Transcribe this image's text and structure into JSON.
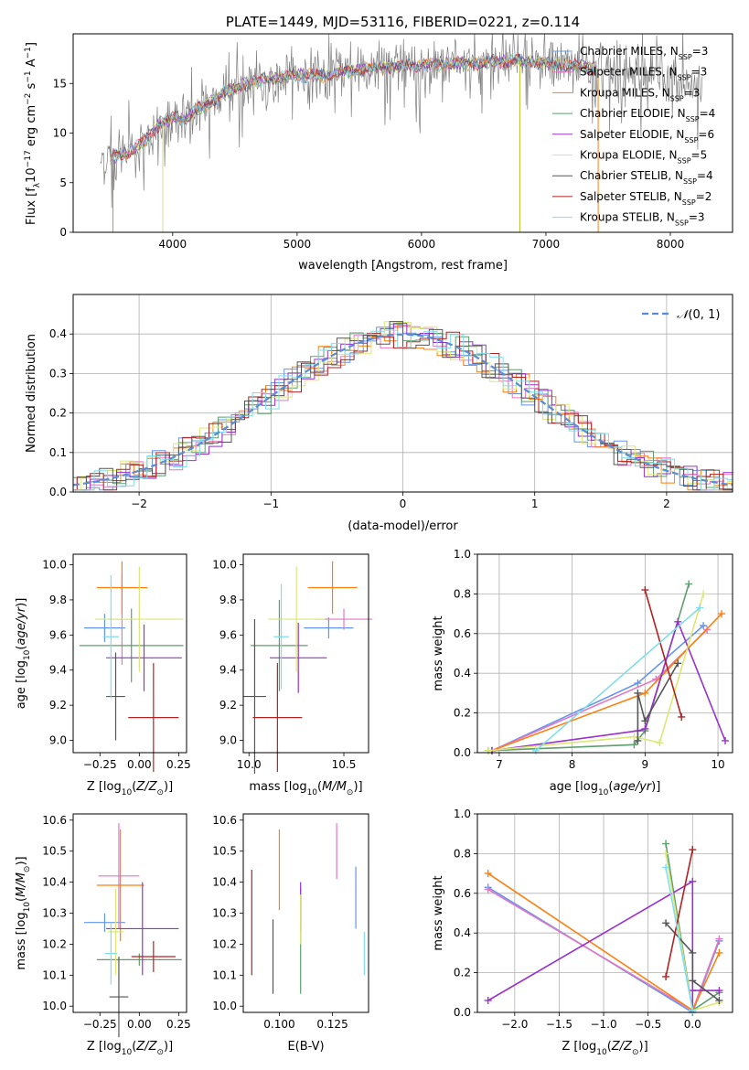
{
  "chart_data": [
    {
      "id": "spectrum",
      "type": "line",
      "title": "PLATE=1449, MJD=53116, FIBERID=0221, z=0.114",
      "xlabel": "wavelength [Angstrom, rest frame]",
      "ylabel": "Flux [f_λ 10^-17 erg cm^-2 s^-1 A^-1]",
      "xlim": [
        3200,
        8500
      ],
      "ylim": [
        0,
        20
      ],
      "xticks": [
        4000,
        5000,
        6000,
        7000,
        8000
      ],
      "yticks": [
        0,
        5,
        10,
        15
      ],
      "legend_position": "right",
      "continuum_points": [
        [
          3450,
          7.5
        ],
        [
          3600,
          7.8
        ],
        [
          3700,
          8.5
        ],
        [
          3800,
          9.5
        ],
        [
          3900,
          11.0
        ],
        [
          4000,
          11.5
        ],
        [
          4100,
          11.5
        ],
        [
          4200,
          12.5
        ],
        [
          4300,
          13.0
        ],
        [
          4400,
          14.0
        ],
        [
          4600,
          15.0
        ],
        [
          4800,
          15.5
        ],
        [
          5000,
          15.8
        ],
        [
          5200,
          15.8
        ],
        [
          5400,
          16.2
        ],
        [
          5600,
          16.5
        ],
        [
          5800,
          16.8
        ],
        [
          6000,
          16.8
        ],
        [
          6200,
          17.0
        ],
        [
          6400,
          17.0
        ],
        [
          6600,
          17.2
        ],
        [
          6800,
          17.3
        ],
        [
          7000,
          17.0
        ],
        [
          7200,
          16.8
        ],
        [
          7400,
          16.5
        ],
        [
          7600,
          16.2
        ],
        [
          7800,
          15.8
        ],
        [
          8000,
          15.5
        ],
        [
          8200,
          15.2
        ]
      ],
      "data_wave_range": [
        3420,
        8260
      ],
      "model_wave_range": [
        3500,
        7400
      ],
      "cutoff_lines": [
        {
          "wave": 3520,
          "color": "#ff7f0e"
        },
        {
          "wave": 3920,
          "color": "#dbdb8d"
        },
        {
          "wave": 6790,
          "color": "#bcbd22"
        },
        {
          "wave": 7420,
          "color": "#ff7f0e"
        }
      ],
      "legend": [
        {
          "label": "Chabrier MILES, N",
          "sub": "SSP",
          "suffix": "=3",
          "color": "#6495ed"
        },
        {
          "label": "Salpeter MILES, N",
          "sub": "SSP",
          "suffix": "=3",
          "color": "#e377c2"
        },
        {
          "label": "Kroupa MILES, N",
          "sub": "SSP",
          "suffix": "=3",
          "color": "#ff7f0e"
        },
        {
          "label": "Chabrier ELODIE, N",
          "sub": "SSP",
          "suffix": "=4",
          "color": "#5f9e6e"
        },
        {
          "label": "Salpeter ELODIE, N",
          "sub": "SSP",
          "suffix": "=6",
          "color": "#9932cc"
        },
        {
          "label": "Kroupa ELODIE, N",
          "sub": "SSP",
          "suffix": "=5",
          "color": "#dce775"
        },
        {
          "label": "Chabrier STELIB, N",
          "sub": "SSP",
          "suffix": "=4",
          "color": "#555555"
        },
        {
          "label": "Salpeter STELIB, N",
          "sub": "SSP",
          "suffix": "=2",
          "color": "#b22222"
        },
        {
          "label": "Kroupa STELIB, N",
          "sub": "SSP",
          "suffix": "=3",
          "color": "#80deea"
        }
      ]
    },
    {
      "id": "residuals",
      "type": "line",
      "xlabel": "(data-model)/error",
      "ylabel": "Normed distribution",
      "xlim": [
        -2.5,
        2.5
      ],
      "ylim": [
        0,
        0.5
      ],
      "xticks": [
        -2,
        -1,
        0,
        1,
        2
      ],
      "yticks": [
        0.0,
        0.1,
        0.2,
        0.3,
        0.4
      ],
      "grid": true,
      "legend_position": "top-right",
      "legend_label": "N(0, 1)",
      "gaussian_color": "#5b8bd6",
      "bin_width": 0.1,
      "hist_colors": [
        "#6495ed",
        "#e377c2",
        "#ff7f0e",
        "#5f9e6e",
        "#9932cc",
        "#dce775",
        "#555555",
        "#b22222",
        "#80deea"
      ]
    },
    {
      "id": "age_vs_Z",
      "type": "scatter",
      "xlabel": "Z [log10(Z/Z⊙)]",
      "ylabel": "age  [log10(age/yr)]",
      "xlim": [
        -0.42,
        0.3
      ],
      "ylim": [
        8.93,
        10.06
      ],
      "xticks": [
        -0.25,
        0.0,
        0.25
      ],
      "yticks": [
        9.0,
        9.2,
        9.4,
        9.6,
        9.8,
        10.0
      ],
      "points": [
        {
          "x": -0.22,
          "xerr": 0.13,
          "y": 9.64,
          "yerr": 0.08,
          "color": "#6495ed"
        },
        {
          "x": -0.11,
          "xerr": 0.08,
          "y": 9.69,
          "yerr": 0.26,
          "color": "#e377c2"
        },
        {
          "x": -0.11,
          "xerr": 0.16,
          "y": 9.87,
          "yerr": 0.15,
          "color": "#ff7f0e"
        },
        {
          "x": -0.05,
          "xerr": 0.33,
          "y": 9.54,
          "yerr": 0.21,
          "color": "#5f9e6e"
        },
        {
          "x": 0.03,
          "xerr": 0.24,
          "y": 9.47,
          "yerr": 0.19,
          "color": "#9932cc"
        },
        {
          "x": 0.0,
          "xerr": 0.28,
          "y": 9.69,
          "yerr": 0.3,
          "color": "#dce775"
        },
        {
          "x": -0.15,
          "xerr": 0.06,
          "y": 9.25,
          "yerr": 0.25,
          "color": "#555555"
        },
        {
          "x": 0.09,
          "xerr": 0.16,
          "y": 9.13,
          "yerr": 0.31,
          "color": "#b22222"
        },
        {
          "x": -0.18,
          "xerr": 0.05,
          "y": 9.59,
          "yerr": 0.35,
          "color": "#80deea"
        }
      ]
    },
    {
      "id": "age_vs_mass",
      "type": "scatter",
      "xlabel": "mass [log10(M/M⊙)]",
      "ylabel": "",
      "xlim": [
        9.97,
        10.63
      ],
      "ylim": [
        8.93,
        10.06
      ],
      "xticks": [
        10.0,
        10.5
      ],
      "yticks": [
        9.0,
        9.2,
        9.4,
        9.6,
        9.8,
        10.0
      ],
      "points": [
        {
          "x": 10.42,
          "xerr": 0.13,
          "y": 9.64,
          "yerr": 0.06,
          "color": "#6495ed"
        },
        {
          "x": 10.5,
          "xerr": 0.15,
          "y": 9.69,
          "yerr": 0.06,
          "color": "#e377c2"
        },
        {
          "x": 10.44,
          "xerr": 0.13,
          "y": 9.87,
          "yerr": 0.15,
          "color": "#ff7f0e"
        },
        {
          "x": 10.16,
          "xerr": 0.15,
          "y": 9.54,
          "yerr": 0.26,
          "color": "#5f9e6e"
        },
        {
          "x": 10.26,
          "xerr": 0.15,
          "y": 9.47,
          "yerr": 0.2,
          "color": "#9932cc"
        },
        {
          "x": 10.25,
          "xerr": 0.15,
          "y": 9.69,
          "yerr": 0.3,
          "color": "#dce775"
        },
        {
          "x": 10.03,
          "xerr": 0.06,
          "y": 9.25,
          "yerr": 0.44,
          "color": "#555555"
        },
        {
          "x": 10.15,
          "xerr": 0.13,
          "y": 9.13,
          "yerr": 0.31,
          "color": "#b22222"
        },
        {
          "x": 10.17,
          "xerr": 0.04,
          "y": 9.59,
          "yerr": 0.3,
          "color": "#80deea"
        }
      ]
    },
    {
      "id": "weight_vs_age",
      "type": "line",
      "xlabel": "age  [log10(age/yr)]",
      "ylabel": "mass weight",
      "xlim": [
        6.7,
        10.2
      ],
      "ylim": [
        0,
        1.0
      ],
      "xticks": [
        7,
        8,
        9,
        10
      ],
      "yticks": [
        0.0,
        0.2,
        0.4,
        0.6,
        0.8,
        1.0
      ],
      "grid": true,
      "series": [
        {
          "color": "#6495ed",
          "x": [
            6.9,
            8.9,
            9.8
          ],
          "y": [
            0.01,
            0.35,
            0.64
          ]
        },
        {
          "color": "#e377c2",
          "x": [
            6.9,
            9.15,
            9.85
          ],
          "y": [
            0.01,
            0.37,
            0.62
          ]
        },
        {
          "color": "#ff7f0e",
          "x": [
            6.9,
            9.0,
            10.05
          ],
          "y": [
            0.01,
            0.3,
            0.7
          ]
        },
        {
          "color": "#5f9e6e",
          "x": [
            6.85,
            8.85,
            9.0,
            9.6
          ],
          "y": [
            0.01,
            0.04,
            0.11,
            0.85
          ]
        },
        {
          "color": "#9932cc",
          "x": [
            6.9,
            8.9,
            9.0,
            9.45,
            10.1
          ],
          "y": [
            0.01,
            0.11,
            0.12,
            0.66,
            0.06
          ]
        },
        {
          "color": "#dce775",
          "x": [
            6.85,
            8.85,
            9.2,
            9.8
          ],
          "y": [
            0.01,
            0.08,
            0.05,
            0.8
          ]
        },
        {
          "color": "#555555",
          "x": [
            8.9,
            8.9,
            9.0,
            9.45
          ],
          "y": [
            0.06,
            0.3,
            0.16,
            0.45
          ]
        },
        {
          "color": "#b22222",
          "x": [
            9.0,
            9.5
          ],
          "y": [
            0.82,
            0.18
          ]
        },
        {
          "color": "#80deea",
          "x": [
            7.5,
            9.75
          ],
          "y": [
            0.01,
            0.73
          ]
        }
      ]
    },
    {
      "id": "mass_vs_Z",
      "type": "scatter",
      "xlabel": "Z [log10(Z/Z⊙)]",
      "ylabel": "mass [log10(M/M⊙)]",
      "xlim": [
        -0.42,
        0.3
      ],
      "ylim": [
        9.98,
        10.62
      ],
      "xticks": [
        -0.25,
        0.0,
        0.25
      ],
      "yticks": [
        10.0,
        10.1,
        10.2,
        10.3,
        10.4,
        10.5,
        10.6
      ],
      "points": [
        {
          "x": -0.22,
          "xerr": 0.13,
          "y": 10.27,
          "yerr": 0.03,
          "color": "#6495ed"
        },
        {
          "x": -0.13,
          "xerr": 0.13,
          "y": 10.42,
          "yerr": 0.17,
          "color": "#e377c2"
        },
        {
          "x": -0.12,
          "xerr": 0.15,
          "y": 10.39,
          "yerr": 0.18,
          "color": "#ff7f0e"
        },
        {
          "x": 0.0,
          "xerr": 0.27,
          "y": 10.15,
          "yerr": 0.02,
          "color": "#5f9e6e"
        },
        {
          "x": 0.02,
          "xerr": 0.23,
          "y": 10.25,
          "yerr": 0.15,
          "color": "#9932cc"
        },
        {
          "x": -0.15,
          "xerr": 0.05,
          "y": 10.24,
          "yerr": 0.14,
          "color": "#dce775"
        },
        {
          "x": -0.13,
          "xerr": 0.06,
          "y": 10.03,
          "yerr": 0.13,
          "color": "#555555"
        },
        {
          "x": 0.09,
          "xerr": 0.14,
          "y": 10.16,
          "yerr": 0.05,
          "color": "#b22222"
        },
        {
          "x": -0.18,
          "xerr": 0.04,
          "y": 10.17,
          "yerr": 0.1,
          "color": "#80deea"
        }
      ]
    },
    {
      "id": "mass_vs_EBV",
      "type": "scatter",
      "xlabel": "E(B-V)",
      "ylabel": "",
      "xlim": [
        0.083,
        0.142
      ],
      "ylim": [
        9.98,
        10.62
      ],
      "xticks": [
        0.1,
        0.125
      ],
      "yticks": [
        10.0,
        10.1,
        10.2,
        10.3,
        10.4,
        10.5,
        10.6
      ],
      "points": [
        {
          "x": 0.136,
          "y": 10.35,
          "yerr": 0.1,
          "color": "#6495ed"
        },
        {
          "x": 0.127,
          "y": 10.5,
          "yerr": 0.09,
          "color": "#e377c2"
        },
        {
          "x": 0.1,
          "y": 10.44,
          "yerr": 0.13,
          "color": "#ff7f0e"
        },
        {
          "x": 0.11,
          "y": 10.21,
          "yerr": 0.17,
          "color": "#5f9e6e"
        },
        {
          "x": 0.11,
          "y": 10.32,
          "yerr": 0.08,
          "color": "#9932cc"
        },
        {
          "x": 0.11,
          "y": 10.28,
          "yerr": 0.08,
          "color": "#dce775"
        },
        {
          "x": 0.097,
          "y": 10.16,
          "yerr": 0.12,
          "color": "#555555"
        },
        {
          "x": 0.087,
          "y": 10.27,
          "yerr": 0.17,
          "color": "#b22222"
        },
        {
          "x": 0.14,
          "y": 10.17,
          "yerr": 0.07,
          "color": "#80deea"
        }
      ]
    },
    {
      "id": "weight_vs_Z",
      "type": "line",
      "xlabel": "Z [log10(Z/Z⊙)]",
      "ylabel": "mass weight",
      "xlim": [
        -2.42,
        0.45
      ],
      "ylim": [
        0,
        1.0
      ],
      "xticks": [
        -2.0,
        -1.5,
        -1.0,
        -0.5,
        0.0
      ],
      "yticks": [
        0.0,
        0.2,
        0.4,
        0.6,
        0.8,
        1.0
      ],
      "grid": true,
      "series": [
        {
          "color": "#6495ed",
          "x": [
            -2.3,
            0.0,
            0.3
          ],
          "y": [
            0.63,
            0.0,
            0.36
          ]
        },
        {
          "color": "#e377c2",
          "x": [
            -2.3,
            0.0,
            0.3
          ],
          "y": [
            0.62,
            0.01,
            0.37
          ]
        },
        {
          "color": "#ff7f0e",
          "x": [
            -2.3,
            0.0,
            0.3
          ],
          "y": [
            0.7,
            0.01,
            0.3
          ]
        },
        {
          "color": "#5f9e6e",
          "x": [
            -0.3,
            0.0,
            0.3
          ],
          "y": [
            0.85,
            0.01,
            0.1
          ]
        },
        {
          "color": "#9932cc",
          "x": [
            -2.3,
            0.0,
            0.0,
            0.0,
            0.3
          ],
          "y": [
            0.06,
            0.66,
            0.01,
            0.11,
            0.11
          ]
        },
        {
          "color": "#dce775",
          "x": [
            -0.3,
            0.0,
            0.3
          ],
          "y": [
            0.8,
            0.01,
            0.05
          ]
        },
        {
          "color": "#555555",
          "x": [
            -0.3,
            0.0,
            0.0,
            0.3
          ],
          "y": [
            0.45,
            0.3,
            0.16,
            0.06
          ]
        },
        {
          "color": "#b22222",
          "x": [
            -0.3,
            0.0
          ],
          "y": [
            0.18,
            0.82
          ]
        },
        {
          "color": "#80deea",
          "x": [
            -0.3,
            0.0
          ],
          "y": [
            0.73,
            0.01
          ]
        }
      ]
    }
  ]
}
